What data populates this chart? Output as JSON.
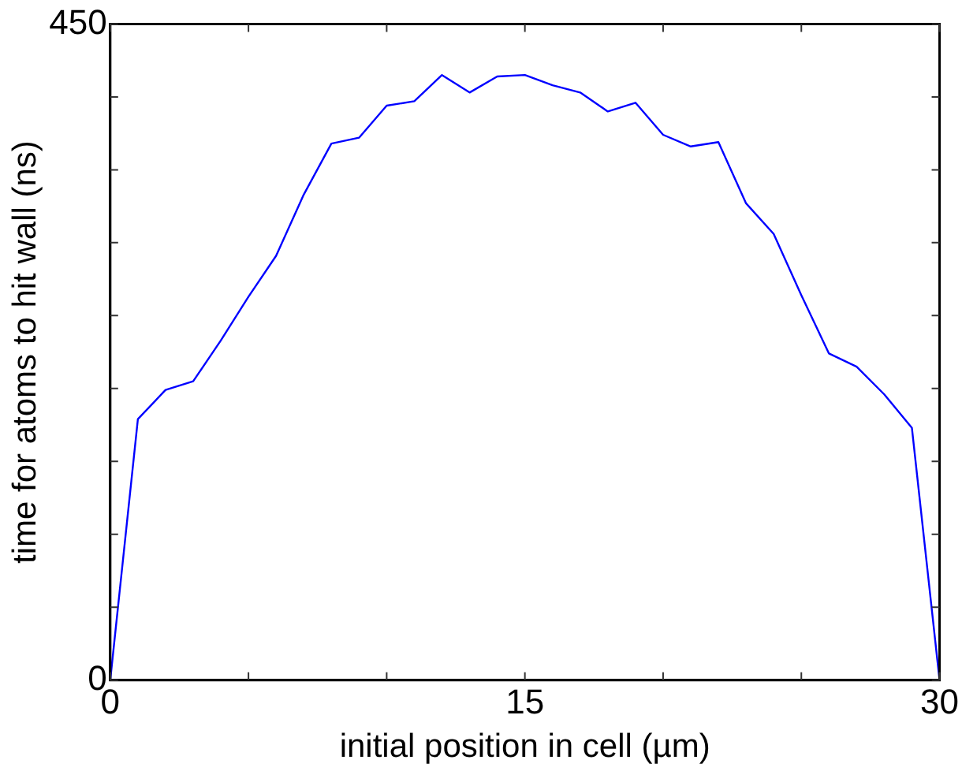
{
  "chart_data": {
    "type": "line",
    "xlabel": "initial position in cell (µm)",
    "ylabel": "time for atoms to hit wall (ns)",
    "x": [
      0,
      1,
      2,
      3,
      4,
      5,
      6,
      7,
      8,
      9,
      10,
      11,
      12,
      13,
      14,
      15,
      16,
      17,
      18,
      19,
      20,
      21,
      22,
      23,
      24,
      25,
      26,
      27,
      28,
      29,
      30
    ],
    "series": [
      {
        "color": "#0000ff",
        "values": [
          0,
          179,
          199,
          205,
          233,
          263,
          291,
          333,
          368,
          372,
          394,
          397,
          415,
          403,
          414,
          415,
          408,
          403,
          390,
          396,
          374,
          366,
          369,
          327,
          306,
          264,
          224,
          215,
          196,
          173,
          0
        ]
      }
    ],
    "xlim": [
      0,
      30
    ],
    "ylim": [
      0,
      450
    ],
    "xticks": [
      0,
      {
        "value": 5,
        "label": null
      },
      {
        "value": 10,
        "label": null
      },
      15,
      {
        "value": 20,
        "label": null
      },
      {
        "value": 25,
        "label": null
      },
      30
    ],
    "yticks": [
      0,
      {
        "value": 50,
        "label": null
      },
      {
        "value": 100,
        "label": null
      },
      {
        "value": 150,
        "label": null
      },
      {
        "value": 200,
        "label": null
      },
      {
        "value": 250,
        "label": null
      },
      {
        "value": 300,
        "label": null
      },
      {
        "value": 350,
        "label": null
      },
      {
        "value": 400,
        "label": null
      },
      450
    ],
    "grid": false,
    "legend": false,
    "marker": "none",
    "line_style": "solid"
  }
}
